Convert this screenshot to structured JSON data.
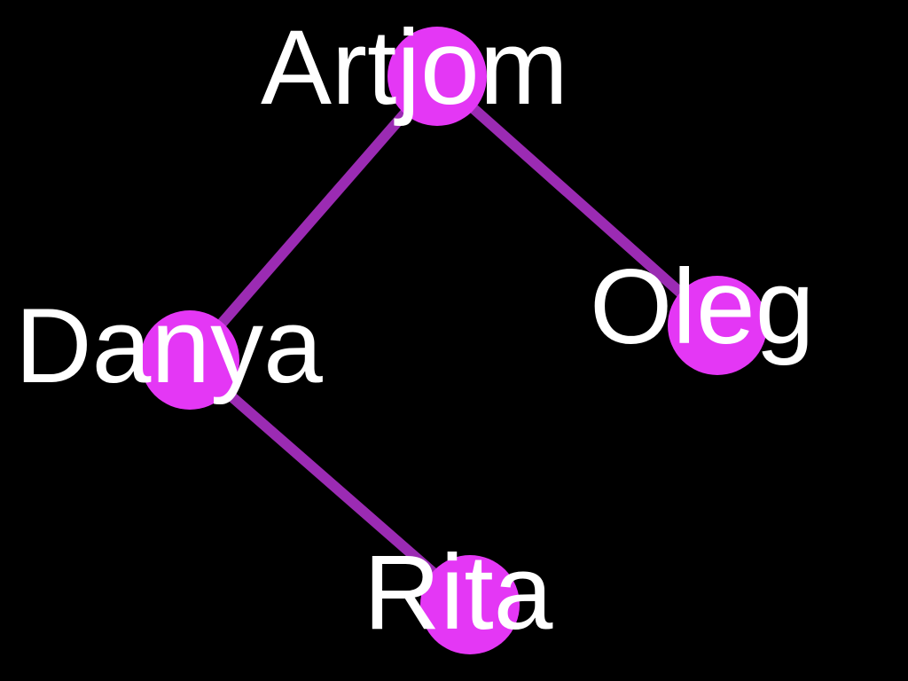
{
  "colors": {
    "background": "#000000",
    "edge": "#9b2bb3",
    "node": "#e437f5",
    "label": "#ffffff"
  },
  "nodes": [
    {
      "id": "artjom",
      "label": "Artjom"
    },
    {
      "id": "danya",
      "label": "Danya"
    },
    {
      "id": "oleg",
      "label": "Oleg"
    },
    {
      "id": "rita",
      "label": "Rita"
    }
  ],
  "edges": [
    {
      "from": "artjom",
      "to": "danya"
    },
    {
      "from": "artjom",
      "to": "oleg"
    },
    {
      "from": "danya",
      "to": "rita"
    }
  ]
}
